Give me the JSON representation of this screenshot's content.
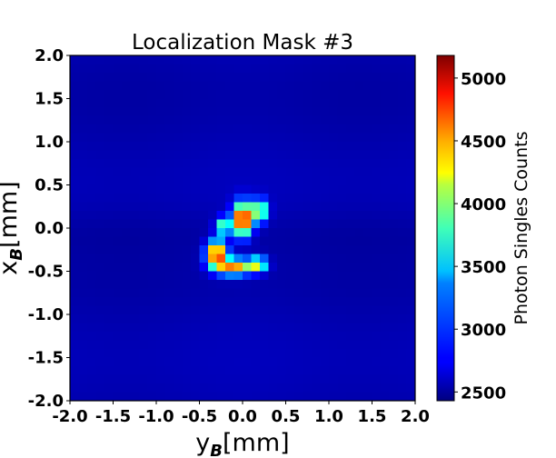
{
  "chart_data": {
    "type": "heatmap",
    "title": "Localization Mask #3",
    "xlabel_main": "y",
    "xlabel_sub": "B",
    "xlabel_unit": "[mm]",
    "ylabel_main": "x",
    "ylabel_sub": "B",
    "ylabel_unit": "[mm]",
    "xlim": [
      -2.0,
      2.0
    ],
    "ylim": [
      -2.0,
      2.0
    ],
    "xticks": [
      -2.0,
      -1.5,
      -1.0,
      -0.5,
      0.0,
      0.5,
      1.0,
      1.5,
      2.0
    ],
    "xtick_labels": [
      "-2.0",
      "-1.5",
      "-1.0",
      "-0.5",
      "0.0",
      "0.5",
      "1.0",
      "1.5",
      "2.0"
    ],
    "yticks": [
      2.0,
      1.5,
      1.0,
      0.5,
      0.0,
      -0.5,
      -1.0,
      -1.5,
      -2.0
    ],
    "ytick_labels": [
      "2.0",
      "1.5",
      "1.0",
      "0.5",
      "0.0",
      "-0.5",
      "-1.0",
      "-1.5",
      "-2.0"
    ],
    "colorbar": {
      "label": "Photon Singles Counts",
      "min": 2430,
      "max": 5180,
      "colormap": "jet",
      "ticks": [
        2500,
        3000,
        3500,
        4000,
        4500,
        5000
      ],
      "tick_labels": [
        "2500",
        "3000",
        "3500",
        "4000",
        "4500",
        "5000"
      ]
    },
    "grid": false,
    "background_level": 2560,
    "hotspots": [
      {
        "x": 0.0,
        "y": 0.1,
        "peak": 5150,
        "sx": 0.075,
        "sy": 0.13
      },
      {
        "x": -0.3,
        "y": -0.3,
        "peak": 4950,
        "sx": 0.08,
        "sy": 0.1
      },
      {
        "x": -0.1,
        "y": -0.45,
        "peak": 4500,
        "sx": 0.14,
        "sy": 0.065
      },
      {
        "x": 0.18,
        "y": -0.42,
        "peak": 4000,
        "sx": 0.07,
        "sy": 0.06
      },
      {
        "x": 0.2,
        "y": 0.2,
        "peak": 4100,
        "sx": 0.06,
        "sy": 0.09
      },
      {
        "x": -0.22,
        "y": 0.02,
        "peak": 3850,
        "sx": 0.06,
        "sy": 0.07
      }
    ]
  }
}
